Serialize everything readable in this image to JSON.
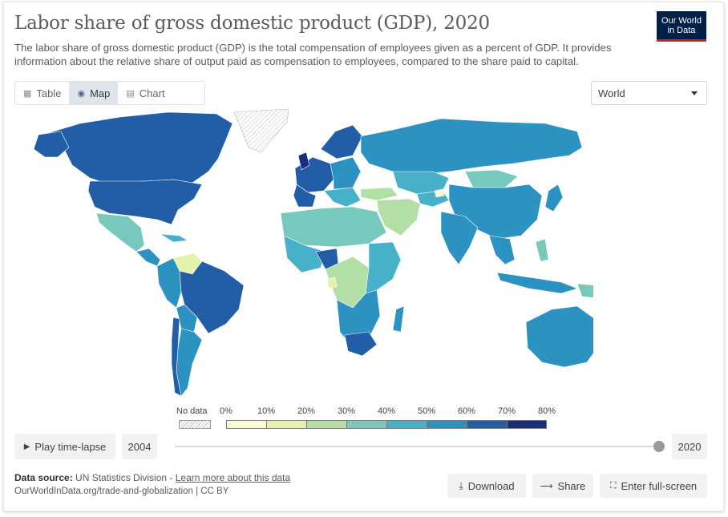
{
  "header": {
    "title": "Labor share of gross domestic product (GDP), 2020",
    "subtitle": "The labor share of gross domestic product (GDP) is the total compensation of employees given as a percent of GDP. It provides information about the relative share of output paid as compensation to employees, compared to the share paid to capital.",
    "logo_line1": "Our World",
    "logo_line2": "in Data"
  },
  "tabs": [
    {
      "label": "Table",
      "icon": "table-icon",
      "active": false
    },
    {
      "label": "Map",
      "icon": "globe-icon",
      "active": true
    },
    {
      "label": "Chart",
      "icon": "chart-icon",
      "active": false
    }
  ],
  "region_select": {
    "value": "World"
  },
  "legend": {
    "no_data_label": "No data",
    "ticks": [
      "0%",
      "10%",
      "20%",
      "30%",
      "40%",
      "50%",
      "60%",
      "70%",
      "80%"
    ],
    "bin_colors": [
      "#fffcd4",
      "#e3f3ab",
      "#b2dfa5",
      "#77c8bd",
      "#46b1c9",
      "#2b92c2",
      "#225ea8",
      "#162e80"
    ]
  },
  "timeline": {
    "play_label": "Play time-lapse",
    "start_year": "2004",
    "end_year": "2020",
    "position": 1.0
  },
  "footer": {
    "source_prefix": "Data source:",
    "source_text": "UN Statistics Division -",
    "learn_more": "Learn more about this data",
    "citation": "OurWorldInData.org/trade-and-globalization | CC BY",
    "download_label": "Download",
    "share_label": "Share",
    "fullscreen_label": "Enter full-screen"
  },
  "map_colors": {
    "dark": "#225ea8",
    "darkest": "#162e80",
    "mid": "#2b92c2",
    "light_blue": "#46b1c9",
    "teal": "#77c8bd",
    "pale_green": "#b2dfa5",
    "yellow": "#e3f3ab",
    "no_data": "#e8e8e8"
  }
}
